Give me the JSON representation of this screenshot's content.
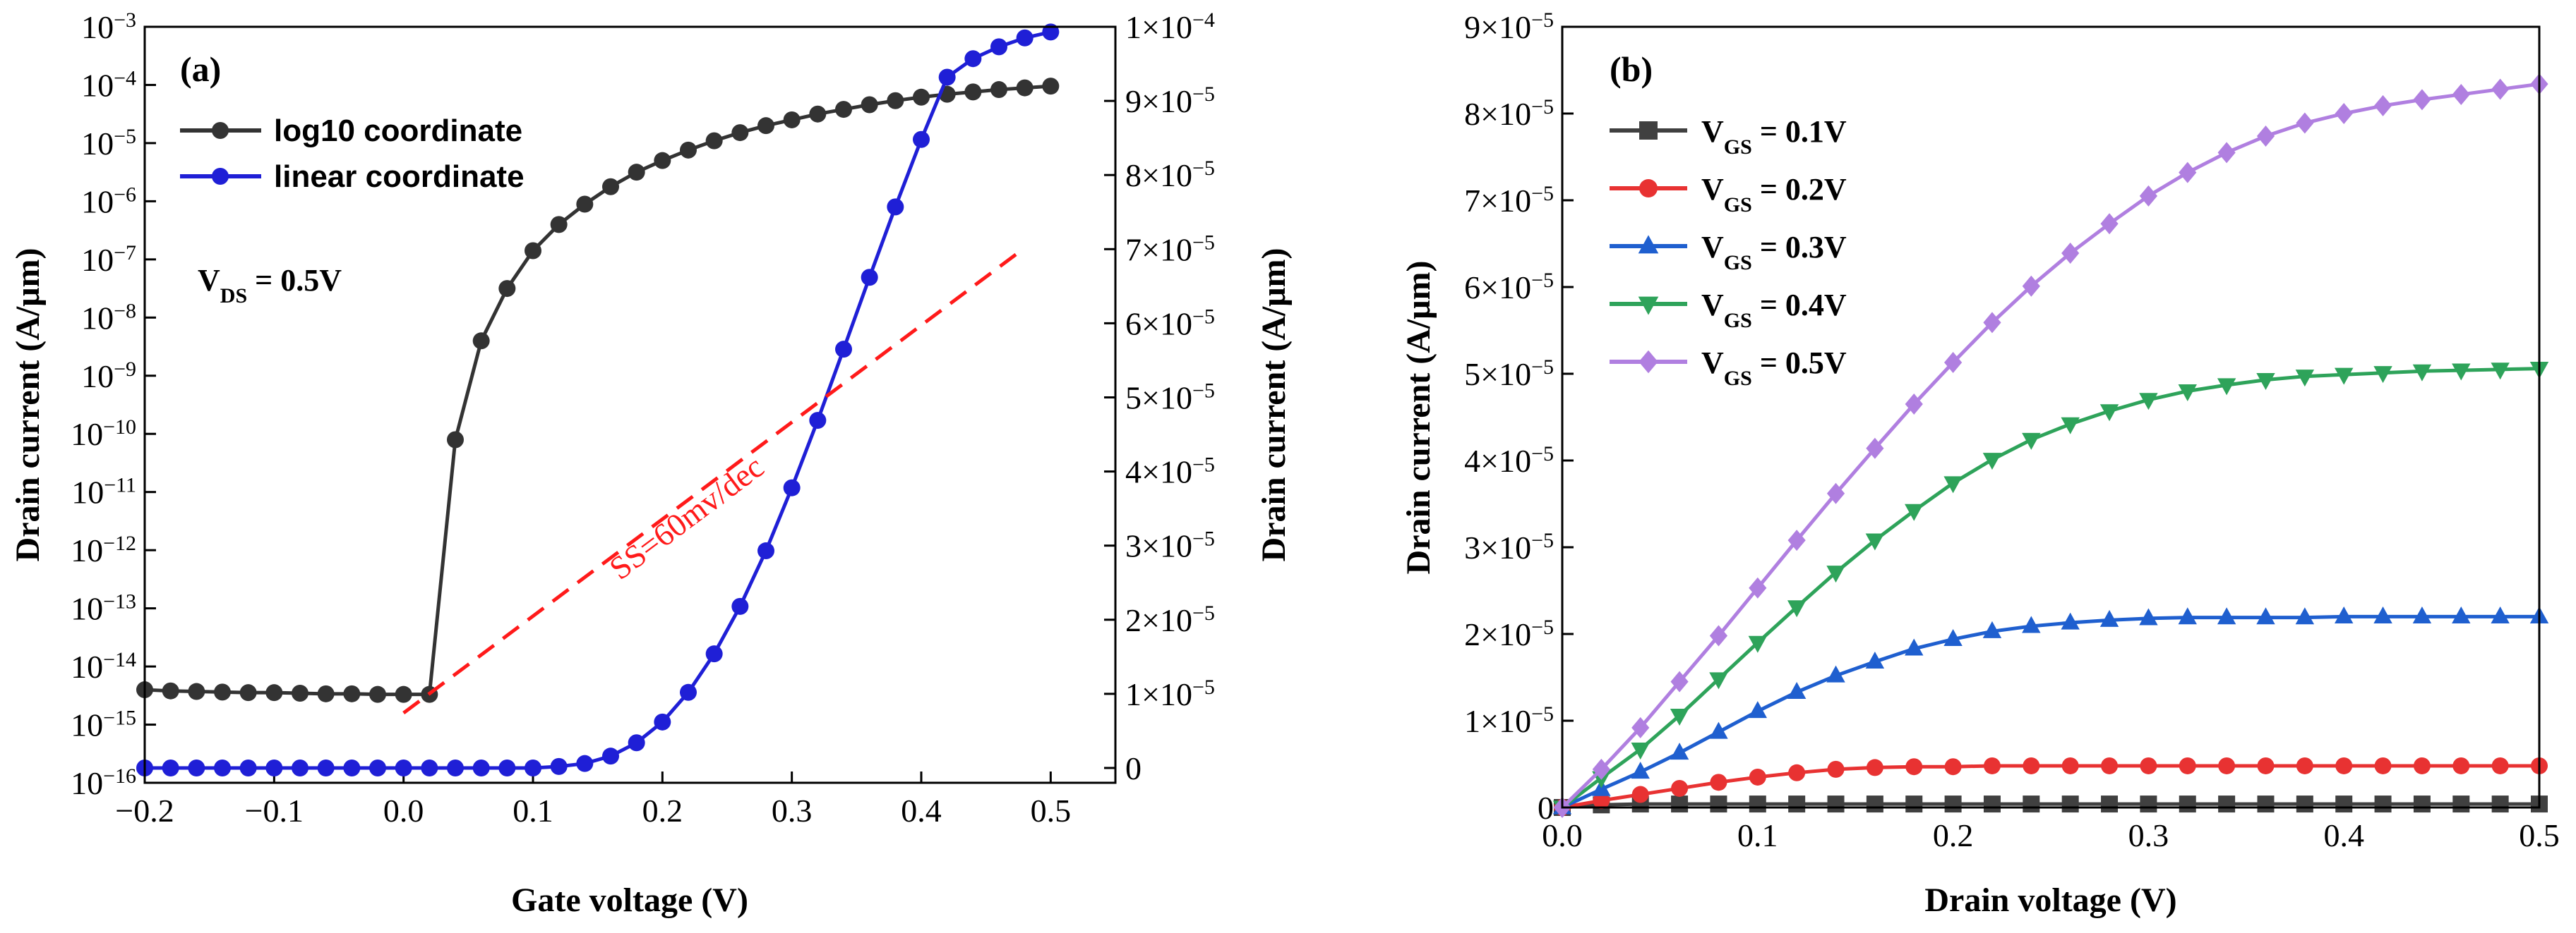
{
  "chart_data": [
    {
      "panel": "(a)",
      "type": "line",
      "xlabel": "Gate voltage (V)",
      "ylabel_left": "Drain current (A/μm)",
      "ylabel_right": "Drain current (A/μm)",
      "xlim": [
        -0.2,
        0.55
      ],
      "xticks": [
        -0.2,
        -0.1,
        0.0,
        0.1,
        0.2,
        0.3,
        0.4,
        0.5
      ],
      "xtick_labels": [
        "−0.2",
        "−0.1",
        "0.0",
        "0.1",
        "0.2",
        "0.3",
        "0.4",
        "0.5"
      ],
      "ylim_left_log_exponents": [
        -16,
        -3
      ],
      "yticks_left": [
        {
          "base": "10",
          "exp": "-16",
          "e": -16
        },
        {
          "base": "10",
          "exp": "-15",
          "e": -15
        },
        {
          "base": "10",
          "exp": "-14",
          "e": -14
        },
        {
          "base": "10",
          "exp": "-13",
          "e": -13
        },
        {
          "base": "10",
          "exp": "-12",
          "e": -12
        },
        {
          "base": "10",
          "exp": "-11",
          "e": -11
        },
        {
          "base": "10",
          "exp": "-10",
          "e": -10
        },
        {
          "base": "10",
          "exp": "-9",
          "e": -9
        },
        {
          "base": "10",
          "exp": "-8",
          "e": -8
        },
        {
          "base": "10",
          "exp": "-7",
          "e": -7
        },
        {
          "base": "10",
          "exp": "-6",
          "e": -6
        },
        {
          "base": "10",
          "exp": "-5",
          "e": -5
        },
        {
          "base": "10",
          "exp": "-4",
          "e": -4
        },
        {
          "base": "10",
          "exp": "-3",
          "e": -3
        }
      ],
      "ylim_right": [
        -2e-06,
        0.0001
      ],
      "yticks_right": [
        {
          "mant": "0",
          "exp": "",
          "v": 0
        },
        {
          "mant": "1×10",
          "exp": "-5",
          "v": 1e-05
        },
        {
          "mant": "2×10",
          "exp": "-5",
          "v": 2e-05
        },
        {
          "mant": "3×10",
          "exp": "-5",
          "v": 3e-05
        },
        {
          "mant": "4×10",
          "exp": "-5",
          "v": 4e-05
        },
        {
          "mant": "5×10",
          "exp": "-5",
          "v": 5e-05
        },
        {
          "mant": "6×10",
          "exp": "-5",
          "v": 6e-05
        },
        {
          "mant": "7×10",
          "exp": "-5",
          "v": 7e-05
        },
        {
          "mant": "8×10",
          "exp": "-5",
          "v": 8e-05
        },
        {
          "mant": "9×10",
          "exp": "-5",
          "v": 9e-05
        },
        {
          "mant": "1×10",
          "exp": "-4",
          "v": 0.0001
        }
      ],
      "x": [
        -0.2,
        -0.18,
        -0.16,
        -0.14,
        -0.12,
        -0.1,
        -0.08,
        -0.06,
        -0.04,
        -0.02,
        0.0,
        0.02,
        0.04,
        0.06,
        0.08,
        0.1,
        0.12,
        0.14,
        0.16,
        0.18,
        0.2,
        0.22,
        0.24,
        0.26,
        0.28,
        0.3,
        0.32,
        0.34,
        0.36,
        0.38,
        0.4,
        0.42,
        0.44,
        0.46,
        0.48,
        0.5
      ],
      "series": [
        {
          "name": "log10 coordinate",
          "axis": "left",
          "color": "#333333",
          "marker": "circle",
          "log10_values": [
            -14.4,
            -14.42,
            -14.43,
            -14.44,
            -14.45,
            -14.45,
            -14.46,
            -14.47,
            -14.47,
            -14.48,
            -14.48,
            -14.48,
            -10.1,
            -8.4,
            -7.5,
            -6.85,
            -6.4,
            -6.05,
            -5.75,
            -5.5,
            -5.3,
            -5.12,
            -4.96,
            -4.82,
            -4.7,
            -4.6,
            -4.5,
            -4.42,
            -4.34,
            -4.27,
            -4.21,
            -4.16,
            -4.12,
            -4.08,
            -4.05,
            -4.02
          ]
        },
        {
          "name": "linear coordinate",
          "axis": "right",
          "color": "#1f1fd6",
          "marker": "circle",
          "values": [
            0.0,
            0.0,
            0.0,
            0.0,
            0.0,
            0.0,
            0.0,
            0.0,
            0.0,
            0.0,
            0.0,
            0.0,
            0.0,
            0.0,
            0.0,
            0.0,
            2e-07,
            6e-07,
            1.6e-06,
            3.4e-06,
            6.2e-06,
            1.02e-05,
            1.54e-05,
            2.18e-05,
            2.93e-05,
            3.78e-05,
            4.69e-05,
            5.65e-05,
            6.62e-05,
            7.57e-05,
            8.48e-05,
            9.32e-05,
            9.57e-05,
            9.73e-05,
            9.85e-05,
            9.93e-05
          ]
        }
      ],
      "legend": [
        "log10 coordinate",
        "linear coordinate"
      ],
      "legend_position": "top-left",
      "annotation_vds": {
        "main": "V",
        "sub": "DS",
        "rest": " = 0.5V"
      },
      "ss_line": {
        "label": "SS=60mv/dec",
        "color": "#ff1a1a",
        "x_start": 0.0,
        "log_start": -14.8,
        "x_end": 0.48,
        "log_end": -6.8
      }
    },
    {
      "panel": "(b)",
      "type": "line",
      "xlabel": "Drain voltage (V)",
      "ylabel": "Drain current (A/μm)",
      "xlim": [
        0,
        0.5
      ],
      "xticks": [
        0.0,
        0.1,
        0.2,
        0.3,
        0.4,
        0.5
      ],
      "xtick_labels": [
        "0.0",
        "0.1",
        "0.2",
        "0.3",
        "0.4",
        "0.5"
      ],
      "ylim": [
        0,
        9e-05
      ],
      "yticks": [
        {
          "mant": "0",
          "exp": "",
          "v": 0
        },
        {
          "mant": "1×10",
          "exp": "-5",
          "v": 1e-05
        },
        {
          "mant": "2×10",
          "exp": "-5",
          "v": 2e-05
        },
        {
          "mant": "3×10",
          "exp": "-5",
          "v": 3e-05
        },
        {
          "mant": "4×10",
          "exp": "-5",
          "v": 4e-05
        },
        {
          "mant": "5×10",
          "exp": "-5",
          "v": 5e-05
        },
        {
          "mant": "6×10",
          "exp": "-5",
          "v": 6e-05
        },
        {
          "mant": "7×10",
          "exp": "-5",
          "v": 7e-05
        },
        {
          "mant": "8×10",
          "exp": "-5",
          "v": 8e-05
        },
        {
          "mant": "9×10",
          "exp": "-5",
          "v": 9e-05
        }
      ],
      "x": [
        0.0,
        0.02,
        0.04,
        0.06,
        0.08,
        0.1,
        0.12,
        0.14,
        0.16,
        0.18,
        0.2,
        0.22,
        0.24,
        0.26,
        0.28,
        0.3,
        0.32,
        0.34,
        0.36,
        0.38,
        0.4,
        0.42,
        0.44,
        0.46,
        0.48,
        0.5
      ],
      "series": [
        {
          "name": "V_GS = 0.1V",
          "label_main": "V",
          "label_sub": "GS",
          "label_rest": " = 0.1V",
          "color": "#404040",
          "marker": "square",
          "values": [
            0.0,
            3e-07,
            4e-07,
            4e-07,
            4e-07,
            4e-07,
            4e-07,
            4e-07,
            4e-07,
            4e-07,
            4e-07,
            4e-07,
            4e-07,
            4e-07,
            4e-07,
            4e-07,
            4e-07,
            4e-07,
            4e-07,
            4e-07,
            4e-07,
            4e-07,
            4e-07,
            4e-07,
            4e-07,
            4e-07
          ]
        },
        {
          "name": "V_GS = 0.2V",
          "label_main": "V",
          "label_sub": "GS",
          "label_rest": " = 0.2V",
          "color": "#e83232",
          "marker": "circle",
          "values": [
            0.0,
            8e-07,
            1.5e-06,
            2.2e-06,
            2.9e-06,
            3.5e-06,
            4e-06,
            4.4e-06,
            4.6e-06,
            4.7e-06,
            4.7e-06,
            4.8e-06,
            4.8e-06,
            4.8e-06,
            4.8e-06,
            4.8e-06,
            4.8e-06,
            4.8e-06,
            4.8e-06,
            4.8e-06,
            4.8e-06,
            4.8e-06,
            4.8e-06,
            4.8e-06,
            4.8e-06,
            4.8e-06
          ]
        },
        {
          "name": "V_GS = 0.3V",
          "label_main": "V",
          "label_sub": "GS",
          "label_rest": " = 0.3V",
          "color": "#1f5fcf",
          "marker": "triangle-up",
          "values": [
            0.0,
            2.1e-06,
            4.1e-06,
            6.3e-06,
            8.7e-06,
            1.11e-05,
            1.33e-05,
            1.52e-05,
            1.68e-05,
            1.83e-05,
            1.94e-05,
            2.03e-05,
            2.09e-05,
            2.13e-05,
            2.16e-05,
            2.18e-05,
            2.19e-05,
            2.19e-05,
            2.19e-05,
            2.19e-05,
            2.2e-05,
            2.2e-05,
            2.2e-05,
            2.2e-05,
            2.2e-05,
            2.2e-05
          ]
        },
        {
          "name": "V_GS = 0.4V",
          "label_main": "V",
          "label_sub": "GS",
          "label_rest": " = 0.4V",
          "color": "#2ea35a",
          "marker": "triangle-down",
          "values": [
            0.0,
            3.4e-06,
            6.7e-06,
            1.06e-05,
            1.48e-05,
            1.9e-05,
            2.31e-05,
            2.71e-05,
            3.08e-05,
            3.42e-05,
            3.74e-05,
            4.01e-05,
            4.24e-05,
            4.42e-05,
            4.57e-05,
            4.7e-05,
            4.8e-05,
            4.87e-05,
            4.93e-05,
            4.97e-05,
            4.99e-05,
            5.01e-05,
            5.03e-05,
            5.04e-05,
            5.05e-05,
            5.06e-05
          ]
        },
        {
          "name": "V_GS = 0.5V",
          "label_main": "V",
          "label_sub": "GS",
          "label_rest": " = 0.5V",
          "color": "#b07fe0",
          "marker": "diamond",
          "values": [
            0.0,
            4.4e-06,
            9.2e-06,
            1.45e-05,
            1.98e-05,
            2.53e-05,
            3.08e-05,
            3.62e-05,
            4.14e-05,
            4.65e-05,
            5.13e-05,
            5.59e-05,
            6.01e-05,
            6.39e-05,
            6.73e-05,
            7.05e-05,
            7.32e-05,
            7.55e-05,
            7.74e-05,
            7.89e-05,
            8e-05,
            8.09e-05,
            8.16e-05,
            8.22e-05,
            8.28e-05,
            8.34e-05
          ]
        }
      ],
      "legend_position": "top-left"
    }
  ]
}
